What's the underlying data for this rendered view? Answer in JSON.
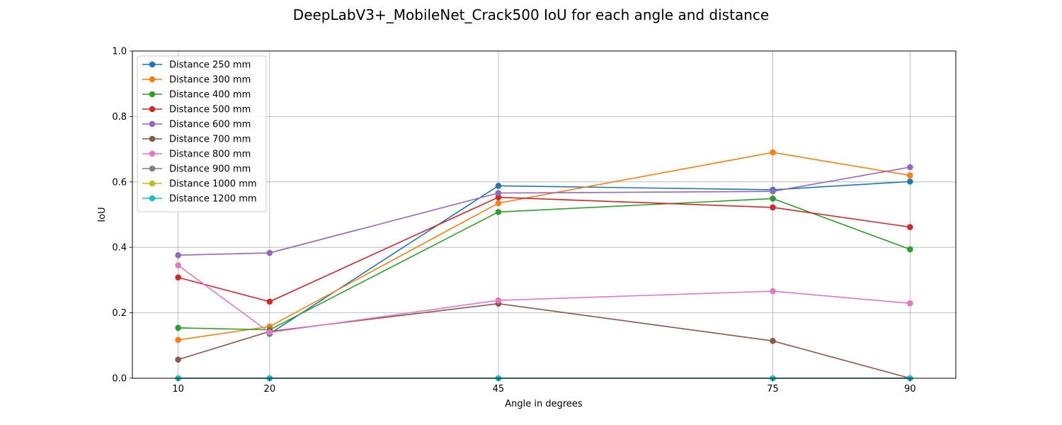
{
  "chart_data": {
    "type": "line",
    "title": "DeepLabV3+_MobileNet_Crack500 IoU for each angle and distance",
    "xlabel": "Angle in degrees",
    "ylabel": "IoU",
    "x": [
      10,
      20,
      45,
      75,
      90
    ],
    "xlim": [
      5,
      95
    ],
    "ylim": [
      0,
      1.0
    ],
    "yticks": [
      0.0,
      0.2,
      0.4,
      0.6,
      0.8,
      1.0
    ],
    "ytick_labels": [
      "0.0",
      "0.2",
      "0.4",
      "0.6",
      "0.8",
      "1.0"
    ],
    "grid": true,
    "legend_position": "top-left",
    "series": [
      {
        "name": "Distance 250 mm",
        "color": "#1f77b4",
        "values": [
          null,
          0.136,
          0.588,
          0.576,
          0.601
        ]
      },
      {
        "name": "Distance 300 mm",
        "color": "#ff7f0e",
        "values": [
          0.117,
          0.158,
          0.535,
          0.69,
          0.62
        ]
      },
      {
        "name": "Distance 400 mm",
        "color": "#2ca02c",
        "values": [
          0.154,
          0.148,
          0.508,
          0.549,
          0.394
        ]
      },
      {
        "name": "Distance 500 mm",
        "color": "#d62728",
        "values": [
          0.308,
          0.234,
          0.553,
          0.522,
          0.462
        ]
      },
      {
        "name": "Distance 600 mm",
        "color": "#9467bd",
        "values": [
          0.376,
          0.383,
          0.566,
          0.571,
          0.645
        ]
      },
      {
        "name": "Distance 700 mm",
        "color": "#8c564b",
        "values": [
          0.057,
          0.143,
          0.228,
          0.114,
          0.0
        ]
      },
      {
        "name": "Distance 800 mm",
        "color": "#e377c2",
        "values": [
          0.345,
          0.14,
          0.238,
          0.266,
          0.229
        ]
      },
      {
        "name": "Distance 900 mm",
        "color": "#7f7f7f",
        "values": [
          0.0,
          0.0,
          0.0,
          0.0,
          0.0
        ]
      },
      {
        "name": "Distance 1000 mm",
        "color": "#bcbd22",
        "values": [
          0.0,
          0.0,
          0.0,
          0.0,
          0.0
        ]
      },
      {
        "name": "Distance 1200 mm",
        "color": "#17becf",
        "values": [
          0.0,
          0.0,
          0.0,
          0.0,
          0.0
        ]
      }
    ]
  }
}
